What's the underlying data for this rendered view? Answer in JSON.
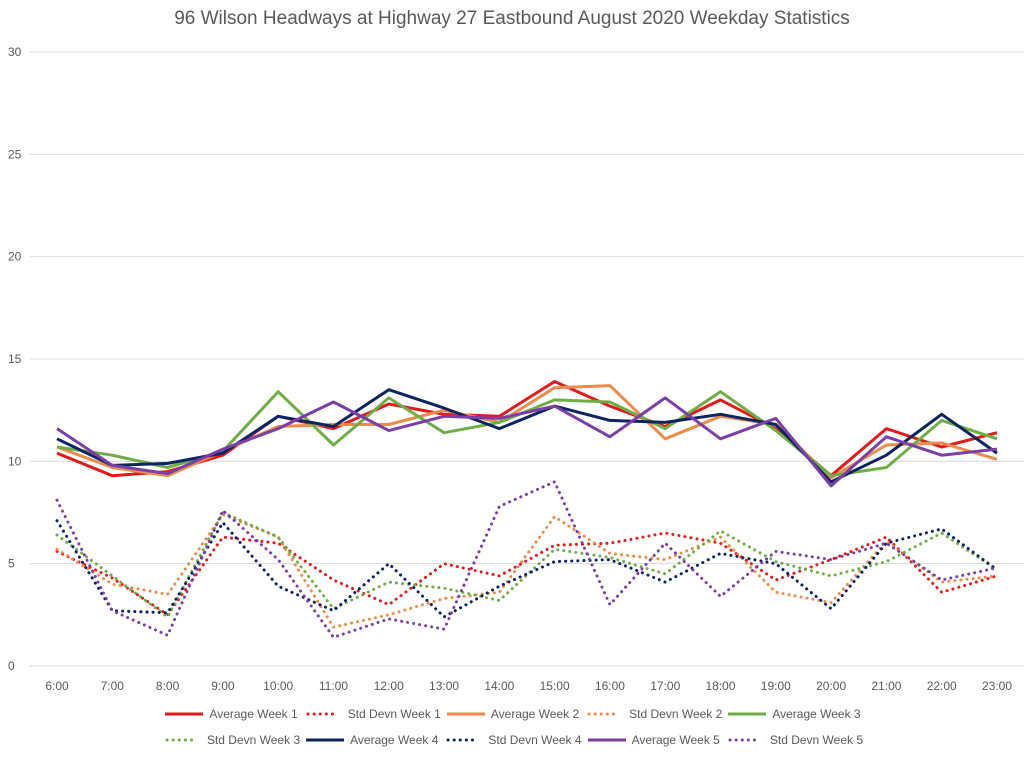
{
  "chart_data": {
    "type": "line",
    "title": "96 Wilson Headways at Highway 27 Eastbound August 2020 Weekday Statistics",
    "xlabel": "",
    "ylabel": "",
    "ylim": [
      0,
      30
    ],
    "yticks": [
      "0",
      "5",
      "10",
      "15",
      "20",
      "25",
      "30"
    ],
    "grid": true,
    "legend_position": "bottom",
    "categories": [
      "6:00",
      "7:00",
      "8:00",
      "9:00",
      "10:00",
      "11:00",
      "12:00",
      "13:00",
      "14:00",
      "15:00",
      "16:00",
      "17:00",
      "18:00",
      "19:00",
      "20:00",
      "21:00",
      "22:00",
      "23:00"
    ],
    "series": [
      {
        "name": "Average Week 1",
        "color": "#e31a1c",
        "style": "solid",
        "values": [
          10.4,
          9.3,
          9.5,
          10.3,
          12.2,
          11.6,
          12.8,
          12.3,
          12.2,
          13.9,
          12.7,
          11.7,
          13.0,
          11.6,
          9.3,
          11.6,
          10.7,
          11.4
        ]
      },
      {
        "name": "Std Devn Week 1",
        "color": "#e31a1c",
        "style": "dotted",
        "values": [
          5.6,
          4.3,
          2.5,
          6.3,
          6.0,
          4.2,
          3.0,
          5.0,
          4.4,
          5.9,
          6.0,
          6.5,
          6.0,
          4.2,
          5.2,
          6.3,
          3.6,
          4.4
        ]
      },
      {
        "name": "Average Week 2",
        "color": "#ed8b4a",
        "style": "solid",
        "values": [
          10.7,
          9.7,
          9.3,
          10.5,
          11.7,
          11.8,
          11.8,
          12.5,
          11.9,
          13.6,
          13.7,
          11.1,
          12.2,
          11.8,
          9.2,
          10.8,
          10.9,
          10.1
        ]
      },
      {
        "name": "Std Devn Week 2",
        "color": "#ed8b4a",
        "style": "dotted",
        "values": [
          5.7,
          4.0,
          3.5,
          7.4,
          6.3,
          1.9,
          2.5,
          3.3,
          3.6,
          7.3,
          5.5,
          5.2,
          6.3,
          3.6,
          3.1,
          6.1,
          4.1,
          4.4
        ]
      },
      {
        "name": "Average Week 3",
        "color": "#70ad47",
        "style": "solid",
        "values": [
          10.7,
          10.3,
          9.7,
          10.5,
          13.4,
          10.8,
          13.1,
          11.4,
          11.9,
          13.0,
          12.9,
          11.6,
          13.4,
          11.5,
          9.3,
          9.7,
          12.0,
          11.1
        ]
      },
      {
        "name": "Std Devn Week 3",
        "color": "#70ad47",
        "style": "dotted",
        "values": [
          6.4,
          4.4,
          2.4,
          7.5,
          6.3,
          2.8,
          4.1,
          3.8,
          3.2,
          5.7,
          5.3,
          4.5,
          6.6,
          5.1,
          4.4,
          5.1,
          6.5,
          4.7
        ]
      },
      {
        "name": "Average Week 4",
        "color": "#0c2461",
        "style": "solid",
        "values": [
          11.1,
          9.8,
          9.9,
          10.4,
          12.2,
          11.7,
          13.5,
          12.6,
          11.6,
          12.7,
          12.0,
          11.9,
          12.3,
          11.8,
          9.0,
          10.3,
          12.3,
          10.4
        ]
      },
      {
        "name": "Std Devn Week 4",
        "color": "#0c2461",
        "style": "dotted",
        "values": [
          7.1,
          2.7,
          2.6,
          7.0,
          3.9,
          2.7,
          5.0,
          2.4,
          3.9,
          5.1,
          5.2,
          4.1,
          5.5,
          5.0,
          2.8,
          6.0,
          6.7,
          4.7
        ]
      },
      {
        "name": "Average Week 5",
        "color": "#7b3fa8",
        "style": "solid",
        "values": [
          11.6,
          9.8,
          9.4,
          10.6,
          11.6,
          12.9,
          11.5,
          12.2,
          12.1,
          12.7,
          11.2,
          13.1,
          11.1,
          12.1,
          8.8,
          11.2,
          10.3,
          10.6
        ]
      },
      {
        "name": "Std Devn Week 5",
        "color": "#7b3fa8",
        "style": "dotted",
        "values": [
          8.1,
          2.7,
          1.5,
          7.6,
          5.2,
          1.4,
          2.3,
          1.8,
          7.8,
          9.0,
          3.0,
          6.0,
          3.4,
          5.6,
          5.2,
          6.0,
          4.2,
          4.8
        ]
      }
    ]
  }
}
